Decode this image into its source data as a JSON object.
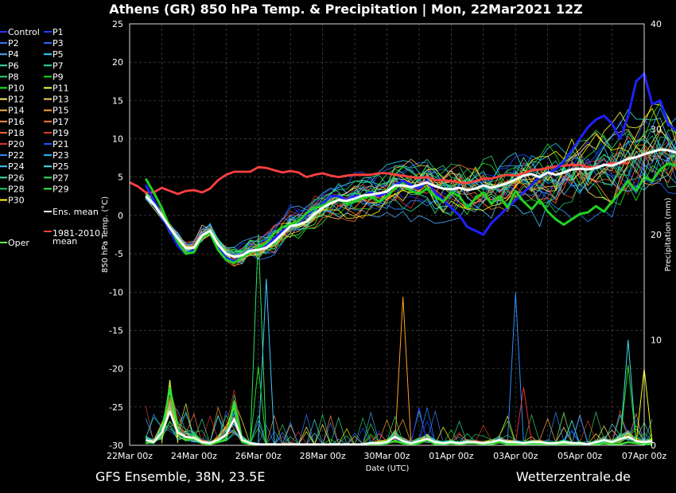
{
  "chart_data": {
    "type": "line",
    "title": "Athens  (GR)  850 hPa Temp. & Precipitation | Mon, 22Mar2021 12Z",
    "xlabel": "Date (UTC)",
    "ylabel": "850 hPa Temp. (°C)",
    "y2label": "Precipitation (mm)",
    "ylim": [
      -30,
      25
    ],
    "y2lim": [
      0,
      40
    ],
    "y_ticks": [
      "25",
      "20",
      "15",
      "10",
      "5",
      "0",
      "-5",
      "-10",
      "-15",
      "-20",
      "-25",
      "-30"
    ],
    "y2_ticks": [
      "40",
      "30",
      "20",
      "10",
      "0"
    ],
    "x_ticks": [
      "22Mar 00z",
      "24Mar 00z",
      "26Mar 00z",
      "28Mar 00z",
      "30Mar 00z",
      "01Apr 00z",
      "03Apr 00z",
      "05Apr 00z",
      "07Apr 00z"
    ],
    "x_range_hours": [
      0,
      384
    ],
    "grid": true,
    "legend_position": "left-outside",
    "legend": [
      "Control",
      "P1",
      "P2",
      "P3",
      "P4",
      "P5",
      "P6",
      "P7",
      "P8",
      "P9",
      "P10",
      "P11",
      "P12",
      "P13",
      "P14",
      "P15",
      "P16",
      "P17",
      "P18",
      "P19",
      "P20",
      "P21",
      "P22",
      "P23",
      "P24",
      "P25",
      "P26",
      "P27",
      "P28",
      "P29",
      "P30",
      "Ens. mean",
      "1981-2010 mean",
      "Oper"
    ],
    "legend_colors": [
      "#3030ff",
      "#1a3cff",
      "#3a7cff",
      "#2a6cff",
      "#46a6ff",
      "#2ad0ff",
      "#3ae0b0",
      "#30e090",
      "#30d870",
      "#20e020",
      "#20f020",
      "#ffff40",
      "#fff060",
      "#ffd060",
      "#ffb040",
      "#ffa020",
      "#ff8a40",
      "#ff7040",
      "#ff6040",
      "#e04020",
      "#e03030",
      "#2050ff",
      "#2c8cff",
      "#20b8ff",
      "#40c8ff",
      "#40e0e0",
      "#30e0a0",
      "#30e060",
      "#20d060",
      "#40f040",
      "#ffff00",
      "#ffffff",
      "#ff4040",
      "#60ff60"
    ],
    "series_style": {
      "temp_start_hour": 12,
      "step_hours": 6
    },
    "climatology_temp": [
      4.3,
      3.8,
      3.0,
      3.0,
      3.6,
      3.2,
      2.8,
      3.2,
      3.3,
      3.0,
      3.5,
      4.6,
      5.3,
      5.7,
      5.7,
      5.7,
      6.3,
      6.2,
      5.9,
      5.6,
      5.8,
      5.6,
      5.0,
      5.3,
      5.5,
      5.2,
      5.0,
      5.2,
      5.3,
      5.3,
      5.3,
      5.5,
      5.5,
      5.3,
      5.2,
      5.0,
      4.9,
      5.0,
      4.6,
      4.6,
      4.5,
      4.3,
      4.2,
      4.5,
      4.8,
      4.8,
      5.1,
      5.3,
      5.2,
      5.5,
      5.9,
      6.0,
      6.2,
      6.4,
      6.5,
      6.6,
      6.6,
      6.3,
      6.3,
      6.6,
      6.8,
      6.8,
      6.8
    ],
    "ens_mean_temp": [
      2.5,
      1.5,
      0.0,
      -1.6,
      -3.0,
      -4.3,
      -4.2,
      -2.6,
      -2.0,
      -3.8,
      -5.0,
      -5.4,
      -5.2,
      -4.6,
      -4.5,
      -4.2,
      -3.4,
      -2.4,
      -1.4,
      -1.2,
      -0.8,
      0.2,
      1.0,
      1.6,
      2.0,
      1.9,
      2.2,
      2.6,
      2.7,
      2.9,
      3.1,
      3.9,
      3.9,
      3.7,
      4.0,
      4.3,
      3.8,
      3.5,
      3.4,
      3.6,
      3.3,
      3.5,
      3.9,
      3.6,
      3.9,
      4.2,
      4.7,
      5.2,
      5.4,
      5.0,
      5.6,
      5.3,
      5.6,
      6.0,
      6.1,
      6.0,
      6.2,
      6.6,
      6.5,
      6.9,
      7.4,
      7.6,
      8.0,
      8.3,
      8.6,
      8.5,
      8.2
    ],
    "control_temp": [
      4.0,
      2.0,
      0.0,
      -2.0,
      -4.0,
      -5.0,
      -4.5,
      -2.5,
      -2.0,
      -4.0,
      -5.5,
      -6.0,
      -5.5,
      -4.5,
      -4.5,
      -4.0,
      -3.0,
      -2.0,
      -1.5,
      -1.0,
      0.0,
      1.0,
      1.5,
      2.5,
      2.5,
      2.0,
      2.5,
      2.5,
      3.0,
      2.5,
      3.0,
      4.0,
      4.5,
      4.0,
      3.5,
      4.5,
      3.0,
      2.0,
      1.0,
      0.0,
      -1.5,
      -2.0,
      -2.5,
      -1.0,
      0.0,
      1.0,
      2.0,
      3.0,
      4.0,
      5.0,
      5.5,
      6.0,
      7.0,
      8.5,
      10.0,
      11.5,
      12.5,
      13.0,
      12.0,
      10.0,
      13.0,
      17.5,
      18.5,
      14.5,
      15.0,
      12.0,
      11.0
    ],
    "oper_temp": [
      4.8,
      3.0,
      1.0,
      -1.5,
      -3.5,
      -5.0,
      -4.8,
      -2.8,
      -2.3,
      -4.5,
      -5.8,
      -6.2,
      -5.5,
      -4.8,
      -4.2,
      -3.6,
      -2.3,
      -1.5,
      -1.2,
      -0.8,
      0.3,
      1.0,
      1.3,
      1.8,
      2.0,
      1.6,
      1.8,
      2.3,
      2.5,
      1.8,
      2.5,
      3.5,
      4.2,
      3.2,
      2.8,
      3.5,
      2.5,
      1.8,
      3.0,
      2.5,
      1.0,
      2.2,
      3.0,
      1.5,
      2.5,
      1.0,
      3.2,
      1.8,
      0.8,
      2.0,
      0.5,
      -0.5,
      -1.2,
      -0.5,
      0.2,
      0.4,
      1.2,
      0.5,
      1.8,
      3.0,
      4.5,
      3.2,
      5.0,
      4.5,
      6.0,
      6.8,
      6.5
    ],
    "ens_mean_precip": [
      0.5,
      0.3,
      1.2,
      3.2,
      1.2,
      0.8,
      0.7,
      0.3,
      0.2,
      0.5,
      1.0,
      2.5,
      0.5,
      0.2,
      0.1,
      0.1,
      0.1,
      0.1,
      0.1,
      0.1,
      0.1,
      0.1,
      0.1,
      0.1,
      0.1,
      0.1,
      0.1,
      0.1,
      0.2,
      0.2,
      0.3,
      0.8,
      0.4,
      0.2,
      0.4,
      0.6,
      0.3,
      0.2,
      0.3,
      0.2,
      0.3,
      0.3,
      0.2,
      0.3,
      0.5,
      0.3,
      0.3,
      0.2,
      0.3,
      0.3,
      0.2,
      0.2,
      0.3,
      0.2,
      0.2,
      0.1,
      0.3,
      0.5,
      0.3,
      0.6,
      0.8,
      0.4,
      0.3,
      0.4
    ],
    "oper_precip": [
      0.2,
      0.3,
      1.0,
      5.5,
      1.5,
      0.5,
      0.6,
      0.2,
      0.1,
      0.3,
      0.5,
      4.0,
      0.3,
      0.1,
      0.1,
      0.1,
      0.1,
      0.1,
      0.1,
      0.1,
      0.1,
      0.1,
      0.1,
      0.1,
      0.1,
      0.1,
      0.1,
      0.1,
      0.1,
      0.1,
      0.2,
      0.4,
      0.2,
      0.1,
      0.2,
      0.5,
      0.1,
      0.1,
      0.2,
      0.1,
      0.2,
      0.2,
      0.1,
      0.1,
      0.3,
      0.1,
      0.1,
      0.1,
      0.1,
      0.1,
      0.1,
      0.1,
      0.1,
      0.1,
      0.1,
      0.1,
      0.1,
      0.2,
      0.1,
      0.1,
      0.3,
      0.2,
      0.1,
      0.1
    ],
    "member_precip_peaks": [
      {
        "hour": 96,
        "value": 20.0,
        "color": "#30e060"
      },
      {
        "hour": 102,
        "value": 15.8,
        "color": "#40c8ff"
      },
      {
        "hour": 204,
        "value": 14.1,
        "color": "#ffa020"
      },
      {
        "hour": 288,
        "value": 14.5,
        "color": "#2c8cff"
      },
      {
        "hour": 96,
        "value": 7.5,
        "color": "#20e020"
      },
      {
        "hour": 30,
        "value": 6.2,
        "color": "#ffff40"
      },
      {
        "hour": 372,
        "value": 10.0,
        "color": "#40e0e0"
      },
      {
        "hour": 372,
        "value": 7.6,
        "color": "#20e020"
      },
      {
        "hour": 384,
        "value": 7.3,
        "color": "#ffff00"
      },
      {
        "hour": 216,
        "value": 3.6,
        "color": "#3030ff"
      },
      {
        "hour": 294,
        "value": 5.5,
        "color": "#e03030"
      },
      {
        "hour": 336,
        "value": 2.8,
        "color": "#2c8cff"
      }
    ]
  },
  "footer": {
    "left": "GFS Ensemble, 38N, 23.5E",
    "right": "Wetterzentrale.de"
  }
}
